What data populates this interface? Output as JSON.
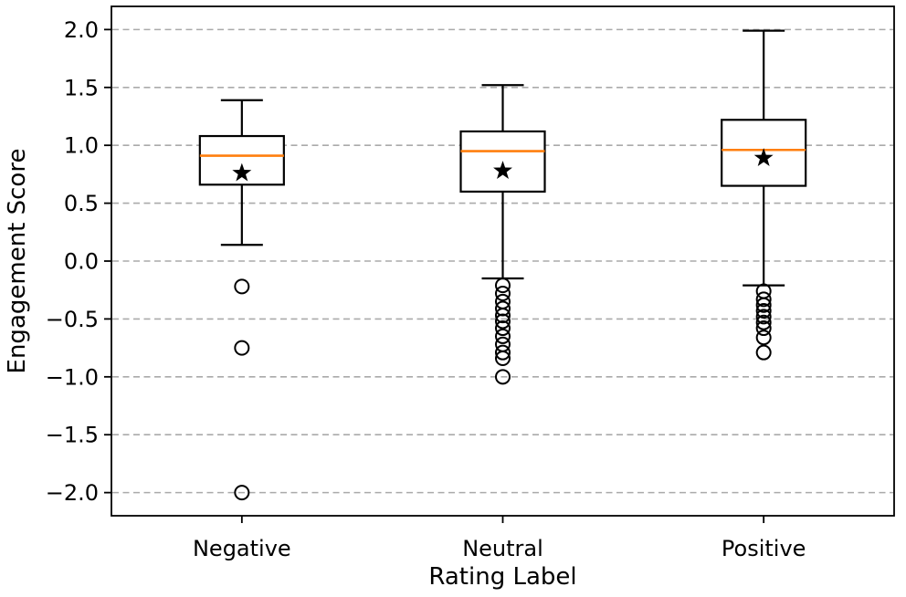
{
  "figure": {
    "background": "#ffffff"
  },
  "chart_data": {
    "type": "box",
    "title": "",
    "xlabel": "Rating Label",
    "ylabel": "Engagement Score",
    "categories": [
      "Negative",
      "Neutral",
      "Positive"
    ],
    "ylim": [
      -2.2,
      2.2
    ],
    "yticks": [
      2.0,
      1.5,
      1.0,
      0.5,
      0.0,
      -0.5,
      -1.0,
      -1.5,
      -2.0
    ],
    "ytick_labels": [
      "2.0",
      "1.5",
      "1.0",
      "0.5",
      "0.0",
      "−0.5",
      "−1.0",
      "−1.5",
      "−2.0"
    ],
    "grid": {
      "horizontal": true,
      "style": "dashed",
      "color": "#aaaaaa"
    },
    "legend": null,
    "colors": {
      "box_edge": "#000000",
      "box_fill": "#ffffff",
      "median": "#ff7f0e",
      "mean_marker": "#000000",
      "whisker": "#000000",
      "outlier_edge": "#000000"
    },
    "series": [
      {
        "label": "Negative",
        "whisker_low": 0.14,
        "q1": 0.66,
        "median": 0.91,
        "q3": 1.08,
        "whisker_high": 1.39,
        "mean": 0.76,
        "outliers": [
          -0.22,
          -0.75,
          -2.0
        ]
      },
      {
        "label": "Neutral",
        "whisker_low": -0.15,
        "q1": 0.6,
        "median": 0.95,
        "q3": 1.12,
        "whisker_high": 1.52,
        "mean": 0.78,
        "outliers": [
          -0.21,
          -0.28,
          -0.35,
          -0.41,
          -0.47,
          -0.52,
          -0.58,
          -0.65,
          -0.72,
          -0.79,
          -0.84,
          -1.0
        ]
      },
      {
        "label": "Positive",
        "whisker_low": -0.21,
        "q1": 0.65,
        "median": 0.96,
        "q3": 1.22,
        "whisker_high": 1.99,
        "mean": 0.89,
        "outliers": [
          -0.26,
          -0.33,
          -0.38,
          -0.43,
          -0.48,
          -0.53,
          -0.58,
          -0.66,
          -0.79
        ]
      }
    ]
  }
}
